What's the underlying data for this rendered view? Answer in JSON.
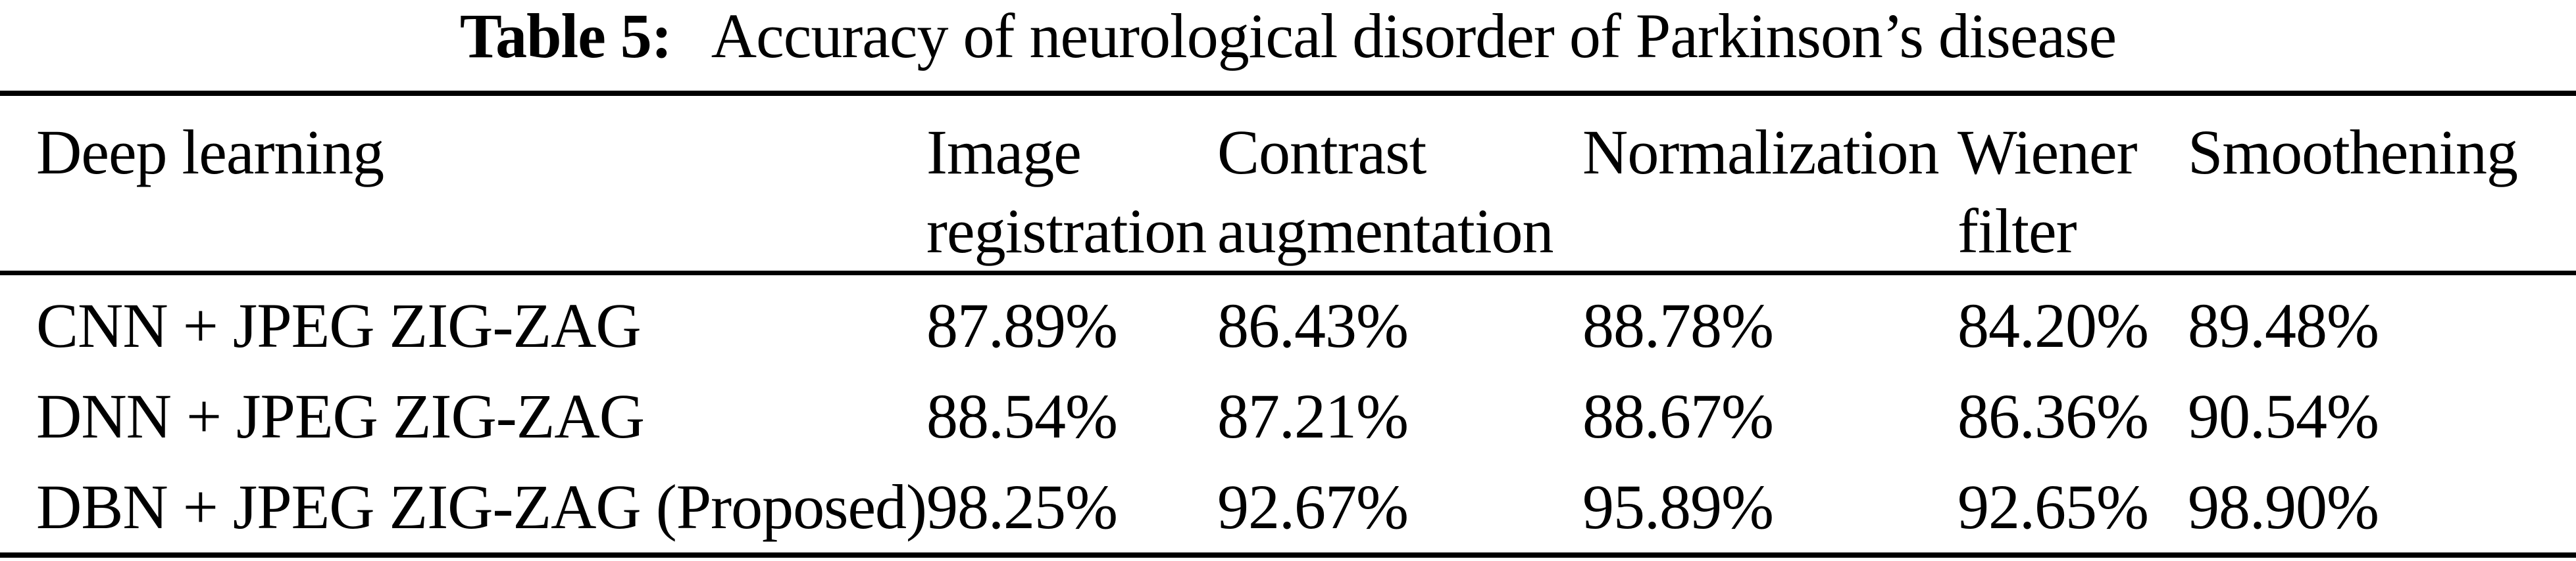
{
  "caption": {
    "label": "Table 5:",
    "text": "Accuracy of neurological disorder of Parkinson’s disease"
  },
  "table": {
    "columns": [
      "Deep learning",
      "Image registration",
      "Contrast augmentation",
      "Normalization",
      "Wiener filter",
      "Smoothening"
    ],
    "rows": [
      {
        "method": "CNN + JPEG ZIG-ZAG",
        "values": [
          "87.89%",
          "86.43%",
          "88.78%",
          "84.20%",
          "89.48%"
        ]
      },
      {
        "method": "DNN + JPEG ZIG-ZAG",
        "values": [
          "88.54%",
          "87.21%",
          "88.67%",
          "86.36%",
          "90.54%"
        ]
      },
      {
        "method": "DBN + JPEG ZIG-ZAG (Proposed)",
        "values": [
          "98.25%",
          "92.67%",
          "95.89%",
          "92.65%",
          "98.90%"
        ]
      }
    ]
  },
  "colors": {
    "text": "#000000",
    "background": "#ffffff",
    "rule": "#000000"
  }
}
